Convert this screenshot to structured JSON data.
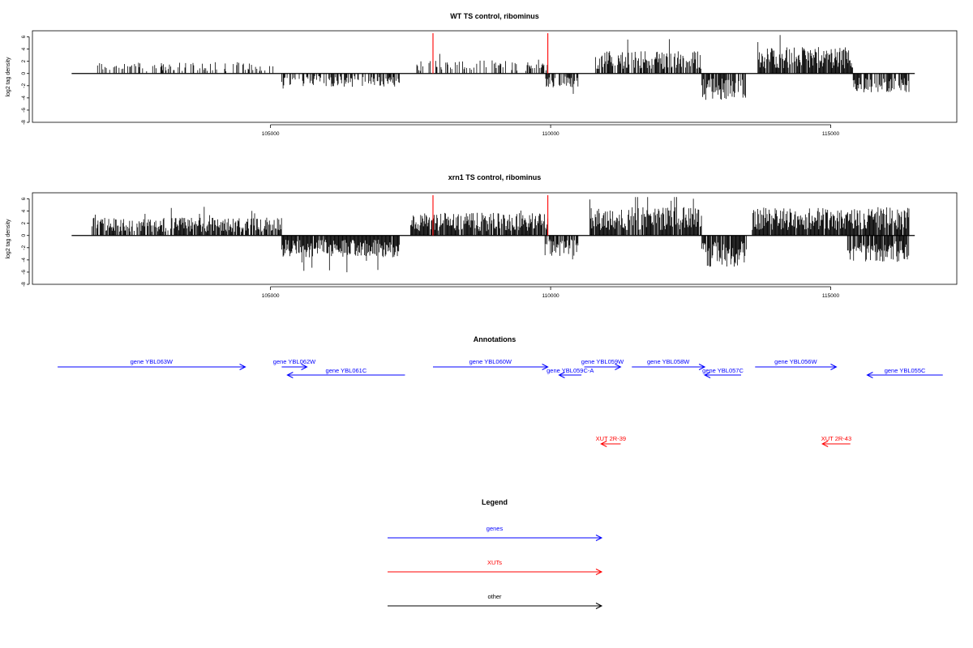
{
  "colors": {
    "gene": "#0000ff",
    "xut": "#ff0000",
    "other": "#000000",
    "highlight": "#ff0000",
    "signal": "#000000"
  },
  "chart_data": [
    {
      "type": "bar",
      "title": "WT TS control, ribominus",
      "ylabel": "log2 tag density",
      "xlim": [
        100750,
        117250
      ],
      "ylim": [
        -8,
        7
      ],
      "xticks": [
        "105000",
        "110000",
        "115000"
      ],
      "yticks": [
        "6",
        "4",
        "2",
        "0",
        "-2",
        "-4",
        "-6",
        "-8"
      ],
      "highlight_x": [
        107900,
        109950
      ],
      "forward_regions": [
        {
          "from": 101900,
          "to": 105200,
          "mean": 1.2,
          "density": 0.35
        },
        {
          "from": 107600,
          "to": 109950,
          "mean": 1.4,
          "density": 0.35
        },
        {
          "from": 110800,
          "to": 112700,
          "mean": 2.4,
          "density": 0.7
        },
        {
          "from": 113700,
          "to": 115400,
          "mean": 2.8,
          "density": 0.9
        }
      ],
      "reverse_regions": [
        {
          "from": 105200,
          "to": 107300,
          "mean": -1.4,
          "density": 0.55
        },
        {
          "from": 109900,
          "to": 110500,
          "mean": -1.6,
          "density": 0.6
        },
        {
          "from": 112700,
          "to": 113500,
          "mean": -2.8,
          "density": 0.8
        },
        {
          "from": 115400,
          "to": 116400,
          "mean": -2.0,
          "density": 0.7
        }
      ]
    },
    {
      "type": "bar",
      "title": "xrn1 TS control, ribominus",
      "ylabel": "log2 tag density",
      "xlim": [
        100750,
        117250
      ],
      "ylim": [
        -8,
        7
      ],
      "xticks": [
        "105000",
        "110000",
        "115000"
      ],
      "yticks": [
        "6",
        "4",
        "2",
        "0",
        "-2",
        "-4",
        "-6",
        "-8"
      ],
      "highlight_x": [
        107900,
        109950
      ],
      "forward_regions": [
        {
          "from": 101800,
          "to": 105200,
          "mean": 1.9,
          "density": 0.8
        },
        {
          "from": 107500,
          "to": 109950,
          "mean": 2.4,
          "density": 0.9
        },
        {
          "from": 110700,
          "to": 112700,
          "mean": 3.0,
          "density": 0.9
        },
        {
          "from": 113600,
          "to": 116400,
          "mean": 3.0,
          "density": 0.95
        }
      ],
      "reverse_regions": [
        {
          "from": 105200,
          "to": 107300,
          "mean": -2.3,
          "density": 0.95
        },
        {
          "from": 109900,
          "to": 110500,
          "mean": -2.2,
          "density": 0.8
        },
        {
          "from": 112700,
          "to": 113500,
          "mean": -3.3,
          "density": 0.9
        },
        {
          "from": 115300,
          "to": 116400,
          "mean": -2.8,
          "density": 0.9
        }
      ]
    }
  ],
  "annotations": {
    "title": "Annotations",
    "features": [
      {
        "label": "gene YBL063W",
        "kind": "gene",
        "strand": "+",
        "start": 101200,
        "end": 104550,
        "row": 0
      },
      {
        "label": "gene YBL062W",
        "kind": "gene",
        "strand": "+",
        "start": 105200,
        "end": 105650,
        "row": 0
      },
      {
        "label": "gene YBL061C",
        "kind": "gene",
        "strand": "-",
        "start": 105300,
        "end": 107400,
        "row": 1
      },
      {
        "label": "gene YBL060W",
        "kind": "gene",
        "strand": "+",
        "start": 107900,
        "end": 109950,
        "row": 0
      },
      {
        "label": "gene YBL059C-A",
        "kind": "gene",
        "strand": "-",
        "start": 110150,
        "end": 110550,
        "row": 1
      },
      {
        "label": "gene YBL059W",
        "kind": "gene",
        "strand": "+",
        "start": 110600,
        "end": 111250,
        "row": 0
      },
      {
        "label": "gene YBL058W",
        "kind": "gene",
        "strand": "+",
        "start": 111450,
        "end": 112750,
        "row": 0
      },
      {
        "label": "gene YBL057C",
        "kind": "gene",
        "strand": "-",
        "start": 112750,
        "end": 113400,
        "row": 1
      },
      {
        "label": "gene YBL056W",
        "kind": "gene",
        "strand": "+",
        "start": 113650,
        "end": 115100,
        "row": 0
      },
      {
        "label": "gene YBL055C",
        "kind": "gene",
        "strand": "-",
        "start": 115650,
        "end": 117000,
        "row": 1
      },
      {
        "label": "XUT 2R-39",
        "kind": "xut",
        "strand": "-",
        "start": 110900,
        "end": 111250,
        "row": 2
      },
      {
        "label": "XUT 2R-43",
        "kind": "xut",
        "strand": "-",
        "start": 114850,
        "end": 115350,
        "row": 2
      }
    ]
  },
  "legend": {
    "title": "Legend",
    "items": [
      {
        "label": "genes",
        "kind": "gene"
      },
      {
        "label": "XUTs",
        "kind": "xut"
      },
      {
        "label": "other",
        "kind": "other"
      }
    ]
  }
}
